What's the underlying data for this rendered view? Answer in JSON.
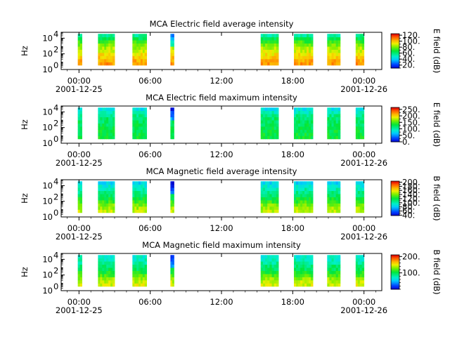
{
  "chart_data": [
    {
      "type": "heatmap",
      "title": "MCA  Electric field average intensity",
      "ylabel": "Hz",
      "yscale": "log",
      "yticks": [
        {
          "exp": "0",
          "base": "10"
        },
        {
          "exp": "2",
          "base": "10"
        },
        {
          "exp": "4",
          "base": "10"
        }
      ],
      "xticks": [
        {
          "label": "00:00",
          "sub": "2001-12-25"
        },
        {
          "label": "06:00",
          "sub": ""
        },
        {
          "label": "12:00",
          "sub": ""
        },
        {
          "label": "18:00",
          "sub": ""
        },
        {
          "label": "00:00",
          "sub": "2001-12-26"
        }
      ],
      "colorbar": {
        "label": "E field (dB)",
        "min": 10,
        "max": 125,
        "ticks": [
          "20.",
          "40.",
          "60.",
          "80.",
          "100.",
          "120."
        ]
      },
      "profile": [
        0.84,
        0.82,
        0.78,
        0.74,
        0.7,
        0.66,
        0.62,
        0.56,
        0.48,
        0.4
      ]
    },
    {
      "type": "heatmap",
      "title": "MCA  Electric field maximum intensity",
      "ylabel": "Hz",
      "yscale": "log",
      "yticks": [
        {
          "exp": "0",
          "base": "10"
        },
        {
          "exp": "2",
          "base": "10"
        },
        {
          "exp": "4",
          "base": "10"
        }
      ],
      "xticks": [
        {
          "label": "00:00",
          "sub": "2001-12-25"
        },
        {
          "label": "06:00",
          "sub": ""
        },
        {
          "label": "12:00",
          "sub": ""
        },
        {
          "label": "18:00",
          "sub": ""
        },
        {
          "label": "00:00",
          "sub": "2001-12-26"
        }
      ],
      "colorbar": {
        "label": "E field (dB)",
        "min": 0,
        "max": 265,
        "ticks": [
          "0.",
          "50.",
          "100.",
          "150.",
          "200.",
          "250."
        ]
      },
      "profile": [
        0.5,
        0.5,
        0.49,
        0.48,
        0.47,
        0.46,
        0.45,
        0.42,
        0.36,
        0.3
      ]
    },
    {
      "type": "heatmap",
      "title": "MCA  Magnetic field average intensity",
      "ylabel": "Hz",
      "yscale": "log",
      "yticks": [
        {
          "exp": "0",
          "base": "10"
        },
        {
          "exp": "2",
          "base": "10"
        },
        {
          "exp": "4",
          "base": "10"
        }
      ],
      "xticks": [
        {
          "label": "00:00",
          "sub": "2001-12-25"
        },
        {
          "label": "06:00",
          "sub": ""
        },
        {
          "label": "12:00",
          "sub": ""
        },
        {
          "label": "18:00",
          "sub": ""
        },
        {
          "label": "00:00",
          "sub": "2001-12-26"
        }
      ],
      "colorbar": {
        "label": "B field (dB)",
        "min": 38,
        "max": 205,
        "ticks": [
          "40.",
          "60.",
          "80.",
          "100.",
          "120.",
          "140.",
          "160.",
          "180.",
          "200."
        ]
      },
      "profile": [
        0.68,
        0.66,
        0.62,
        0.56,
        0.5,
        0.45,
        0.42,
        0.38,
        0.33,
        0.28
      ]
    },
    {
      "type": "heatmap",
      "title": "MCA  Magnetic field maximum intensity",
      "ylabel": "Hz",
      "yscale": "log",
      "yticks": [
        {
          "exp": "0",
          "base": "10"
        },
        {
          "exp": "2",
          "base": "10"
        },
        {
          "exp": "4",
          "base": "10"
        }
      ],
      "xticks": [
        {
          "label": "00:00",
          "sub": "2001-12-25"
        },
        {
          "label": "06:00",
          "sub": ""
        },
        {
          "label": "12:00",
          "sub": ""
        },
        {
          "label": "18:00",
          "sub": ""
        },
        {
          "label": "00:00",
          "sub": "2001-12-26"
        }
      ],
      "colorbar": {
        "label": "B field (dB)",
        "min": 0,
        "max": 210,
        "ticks": [
          "100.",
          "200."
        ]
      },
      "profile": [
        0.7,
        0.68,
        0.64,
        0.58,
        0.52,
        0.47,
        0.44,
        0.4,
        0.37,
        0.34
      ]
    }
  ],
  "x_range_hours": [
    -1.5,
    25.5
  ],
  "segments_hours": [
    [
      -0.1,
      0.25
    ],
    [
      1.6,
      3.0
    ],
    [
      4.5,
      5.7
    ],
    [
      7.7,
      8.0
    ],
    [
      15.3,
      16.8
    ],
    [
      18.1,
      19.7
    ],
    [
      20.9,
      22.0
    ],
    [
      23.3,
      24.0
    ]
  ]
}
